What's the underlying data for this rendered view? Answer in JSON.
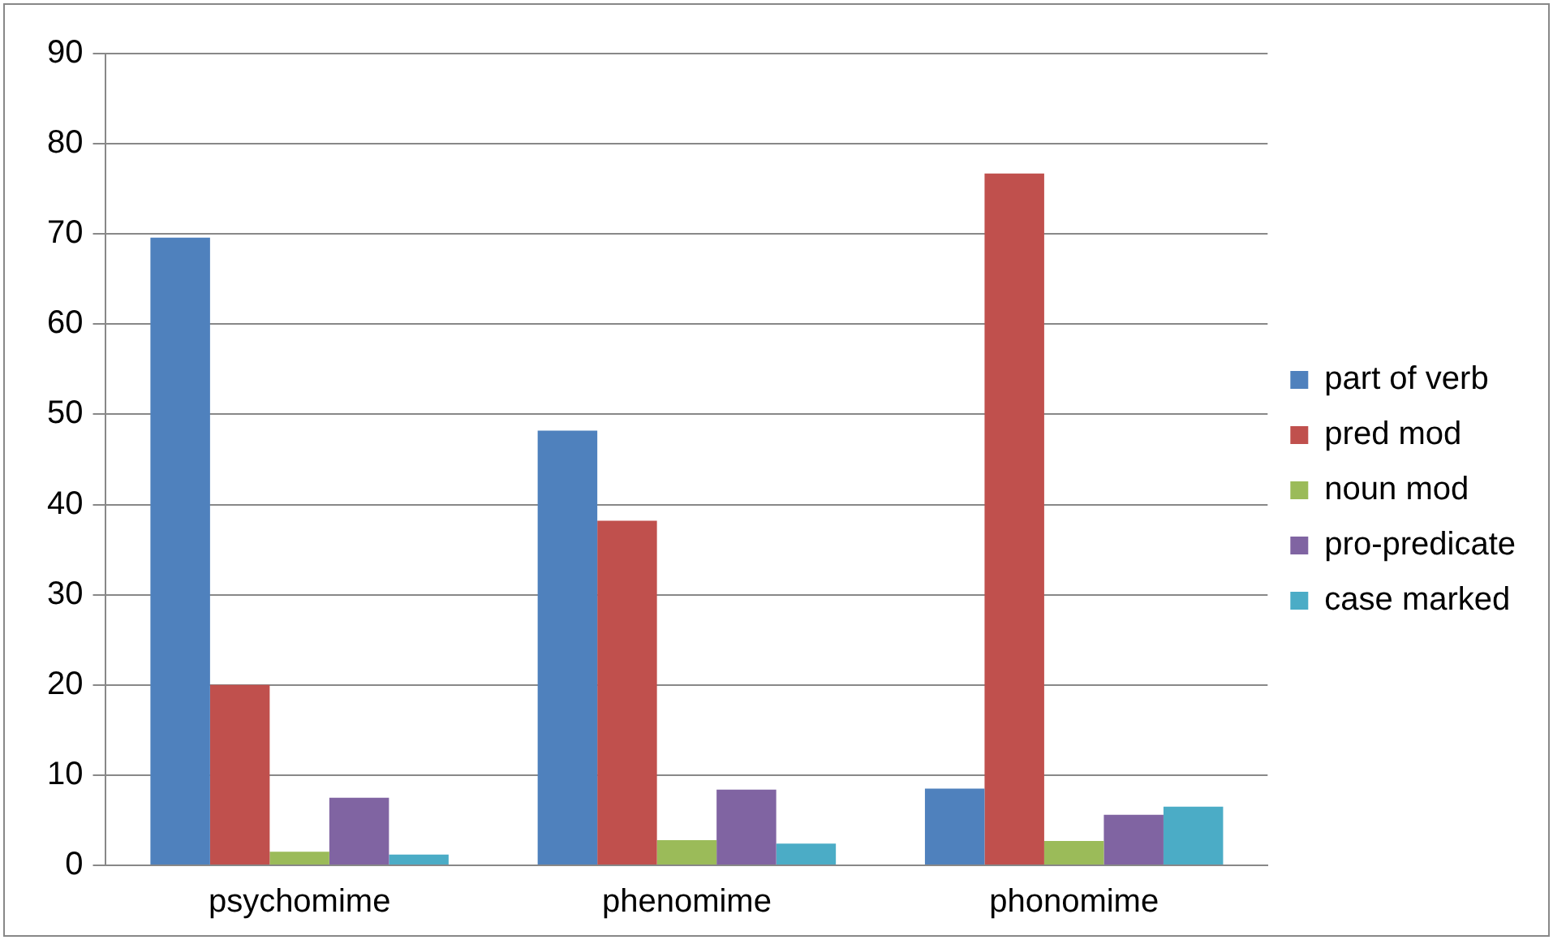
{
  "chart_data": {
    "type": "bar",
    "categories": [
      "psychomime",
      "phenomime",
      "phonomime"
    ],
    "series": [
      {
        "name": "part of verb",
        "color": "#4f81bd",
        "values": [
          69.6,
          48.2,
          8.5
        ]
      },
      {
        "name": "pred mod",
        "color": "#c0504d",
        "values": [
          20,
          38.2,
          76.7
        ]
      },
      {
        "name": "noun mod",
        "color": "#9bbb59",
        "values": [
          1.5,
          2.8,
          2.7
        ]
      },
      {
        "name": "pro-predicate",
        "color": "#8064a2",
        "values": [
          7.5,
          8.4,
          5.6
        ]
      },
      {
        "name": "case marked",
        "color": "#4bacc6",
        "values": [
          1.2,
          2.4,
          6.5
        ]
      }
    ],
    "ylim": [
      0,
      90
    ],
    "yticks": [
      0,
      10,
      20,
      30,
      40,
      50,
      60,
      70,
      80,
      90
    ],
    "grid": "y",
    "legend": "right"
  }
}
